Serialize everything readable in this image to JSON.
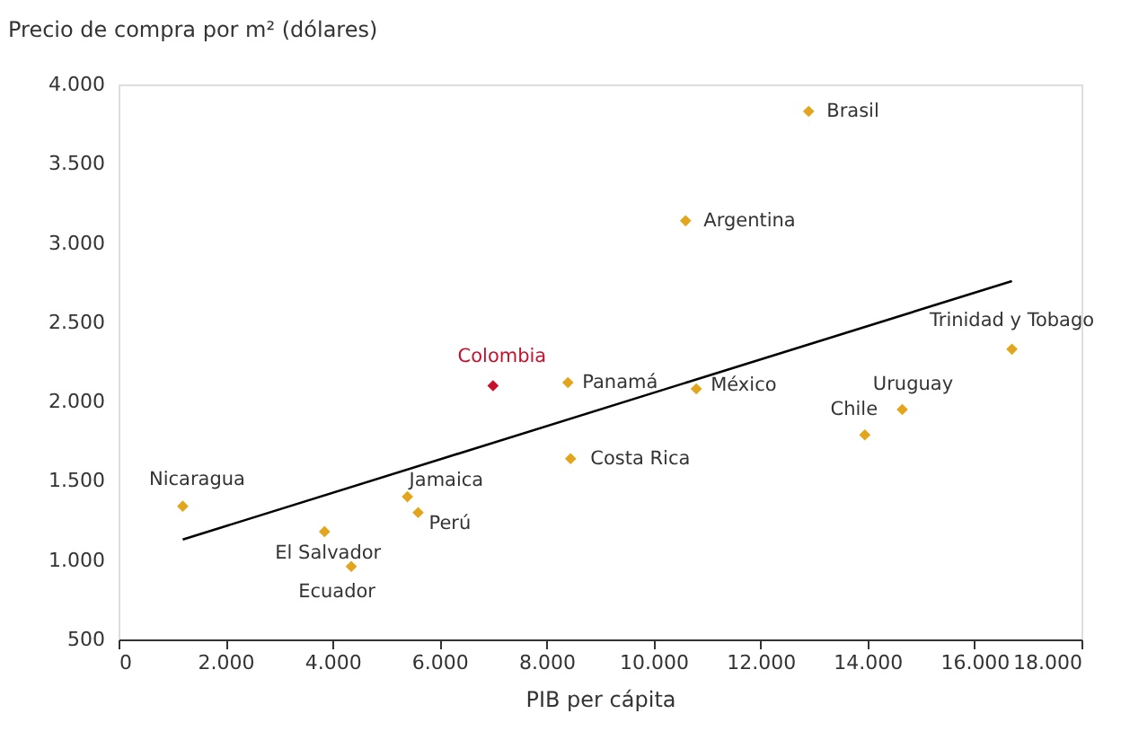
{
  "chart_data": {
    "type": "scatter",
    "xlabel": "PIB per cápita",
    "ylabel": "Precio de compra por m² (dólares)",
    "series": [
      {
        "x": [
          12900,
          10600,
          7000,
          8400,
          10800,
          8450,
          16700,
          14650,
          13950,
          1200,
          5400,
          5600,
          3850,
          4350
        ],
        "values": [
          3830,
          3140,
          2100,
          2120,
          2080,
          1640,
          2330,
          1950,
          1790,
          1340,
          1400,
          1300,
          1180,
          960
        ],
        "colors": [
          "#e3a51b",
          "#e3a51b",
          "#c8102e",
          "#e3a51b",
          "#e3a51b",
          "#e3a51b",
          "#e3a51b",
          "#e3a51b",
          "#e3a51b",
          "#e3a51b",
          "#e3a51b",
          "#e3a51b",
          "#e3a51b",
          "#e3a51b"
        ]
      },
      {
        "type": "line",
        "x": [
          1200,
          16700
        ],
        "values": [
          1130,
          2760
        ],
        "color": "#000000",
        "marker": "none",
        "line_style": "solid"
      }
    ],
    "annotations": [
      {
        "text": "Brasil",
        "x": 12900,
        "y": 3830
      },
      {
        "text": "Argentina",
        "x": 10600,
        "y": 3140
      },
      {
        "text": "Colombia",
        "x": 7000,
        "y": 2100
      },
      {
        "text": "Panamá",
        "x": 8400,
        "y": 2120
      },
      {
        "text": "México",
        "x": 10800,
        "y": 2080
      },
      {
        "text": "Costa Rica",
        "x": 8450,
        "y": 1640
      },
      {
        "text": "Trinidad y Tobago",
        "x": 16700,
        "y": 2330
      },
      {
        "text": "Uruguay",
        "x": 14650,
        "y": 1950
      },
      {
        "text": "Chile",
        "x": 13950,
        "y": 1790
      },
      {
        "text": "Nicaragua",
        "x": 1200,
        "y": 1340
      },
      {
        "text": "Jamaica",
        "x": 5400,
        "y": 1400
      },
      {
        "text": "Perú",
        "x": 5600,
        "y": 1300
      },
      {
        "text": "El Salvador",
        "x": 3850,
        "y": 1180
      },
      {
        "text": "Ecuador",
        "x": 4350,
        "y": 960
      }
    ],
    "xlim": [
      0,
      18000
    ],
    "ylim": [
      500,
      4000
    ],
    "xticks": [
      0,
      {
        "value": 2000,
        "label": "2.000"
      },
      {
        "value": 4000,
        "label": "4.000"
      },
      {
        "value": 6000,
        "label": "6.000"
      },
      {
        "value": 8000,
        "label": "8.000"
      },
      {
        "value": 10000,
        "label": "10.000"
      },
      {
        "value": 12000,
        "label": "12.000"
      },
      {
        "value": 14000,
        "label": "14.000"
      },
      {
        "value": 16000,
        "label": "16.000"
      },
      {
        "value": 18000,
        "label": "18.000"
      }
    ],
    "yticks": [
      500,
      {
        "value": 1000,
        "label": "1.000"
      },
      {
        "value": 1500,
        "label": "1.500"
      },
      {
        "value": 2000,
        "label": "2.000"
      },
      {
        "value": 2500,
        "label": "2.500"
      },
      {
        "value": 3000,
        "label": "3.000"
      },
      {
        "value": 3500,
        "label": "3.500"
      },
      {
        "value": 4000,
        "label": "4.000"
      }
    ],
    "marker": "diamond",
    "grid": false
  }
}
